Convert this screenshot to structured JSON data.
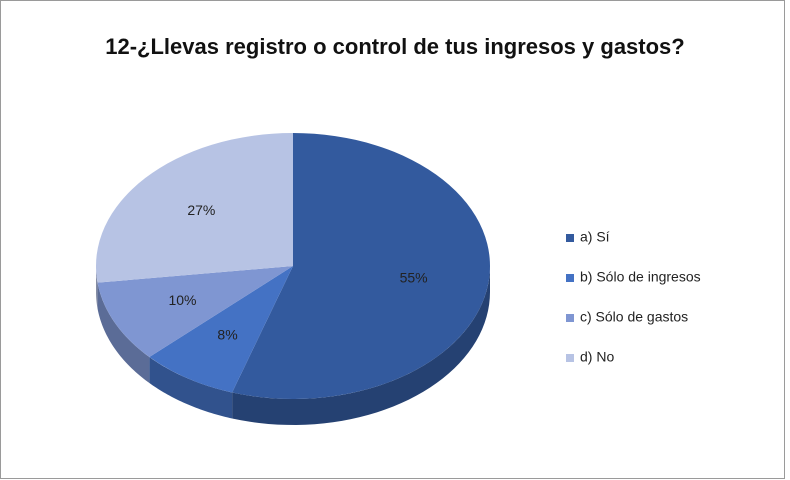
{
  "chart_data": {
    "type": "pie",
    "title": "12-¿Llevas registro o control de tus ingresos y gastos?",
    "categories": [
      "a) Sí",
      "b) Sólo de ingresos",
      "c) Sólo de gastos",
      "d) No"
    ],
    "values": [
      55,
      8,
      10,
      27
    ],
    "value_labels": [
      "55%",
      "8%",
      "10%",
      "27%"
    ],
    "colors": [
      "#335a9e",
      "#4472c4",
      "#7f96d2",
      "#b7c3e4"
    ],
    "legend": "right"
  }
}
